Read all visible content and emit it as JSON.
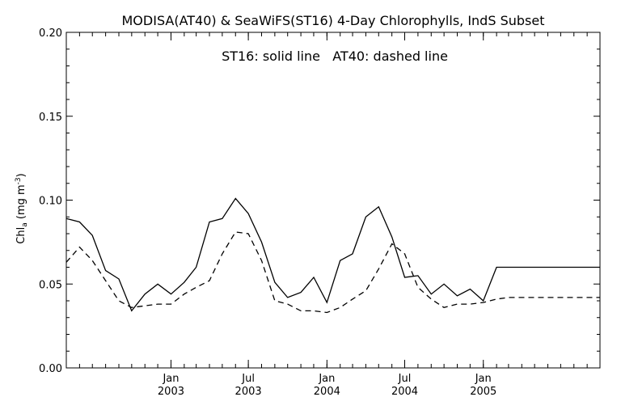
{
  "chart_data": {
    "type": "line",
    "title": "MODISA(AT40) & SeaWiFS(ST16) 4-Day Chlorophylls, IndS Subset",
    "annotation": "ST16: solid line   AT40: dashed line",
    "ylabel": {
      "base": "Chl",
      "sub": "a",
      "units_open": " (mg m",
      "sup": "-3",
      "units_close": ")"
    },
    "ylim": [
      0.0,
      0.2
    ],
    "yticks": [
      {
        "value": 0.0,
        "label": "0.00"
      },
      {
        "value": 0.05,
        "label": "0.05"
      },
      {
        "value": 0.1,
        "label": "0.10"
      },
      {
        "value": 0.15,
        "label": "0.15"
      },
      {
        "value": 0.2,
        "label": "0.20"
      }
    ],
    "xlim": [
      "2002-05-01",
      "2005-10-01"
    ],
    "xticks": [
      {
        "date": "2003-01-01",
        "month": "Jan",
        "year": "2003"
      },
      {
        "date": "2003-07-01",
        "month": "Jul",
        "year": "2003"
      },
      {
        "date": "2004-01-01",
        "month": "Jan",
        "year": "2004"
      },
      {
        "date": "2004-07-01",
        "month": "Jul",
        "year": "2004"
      },
      {
        "date": "2005-01-01",
        "month": "Jan",
        "year": "2005"
      }
    ],
    "x": [
      "2002-05-01",
      "2002-06-01",
      "2002-07-01",
      "2002-08-01",
      "2002-09-01",
      "2002-10-01",
      "2002-11-01",
      "2002-12-01",
      "2003-01-01",
      "2003-02-01",
      "2003-03-01",
      "2003-04-01",
      "2003-05-01",
      "2003-06-01",
      "2003-07-01",
      "2003-08-01",
      "2003-09-01",
      "2003-10-01",
      "2003-11-01",
      "2003-12-01",
      "2004-01-01",
      "2004-02-01",
      "2004-03-01",
      "2004-04-01",
      "2004-05-01",
      "2004-06-01",
      "2004-07-01",
      "2004-08-01",
      "2004-09-01",
      "2004-10-01",
      "2004-11-01",
      "2004-12-01",
      "2005-01-01",
      "2005-02-01",
      "2005-03-01",
      "2005-04-01",
      "2005-05-01",
      "2005-06-01",
      "2005-07-01",
      "2005-08-01",
      "2005-09-01",
      "2005-10-01"
    ],
    "series": [
      {
        "style": "solid",
        "values": [
          0.089,
          0.087,
          0.079,
          0.058,
          0.053,
          0.034,
          0.044,
          0.05,
          0.044,
          0.051,
          0.06,
          0.087,
          0.089,
          0.101,
          0.092,
          0.075,
          0.051,
          0.042,
          0.045,
          0.054,
          0.039,
          0.064,
          0.068,
          0.09,
          0.096,
          0.078,
          0.054,
          0.055,
          0.044,
          0.05,
          0.043,
          0.047,
          0.04,
          0.06,
          0.06,
          0.06,
          0.06,
          0.06,
          0.06,
          0.06,
          0.06,
          0.06
        ]
      },
      {
        "style": "dashed",
        "values": [
          0.063,
          0.072,
          0.064,
          0.052,
          0.04,
          0.036,
          0.037,
          0.038,
          0.038,
          0.044,
          0.048,
          0.052,
          0.068,
          0.081,
          0.08,
          0.064,
          0.04,
          0.038,
          0.034,
          0.034,
          0.033,
          0.036,
          0.041,
          0.046,
          0.059,
          0.074,
          0.068,
          0.048,
          0.041,
          0.036,
          0.038,
          0.038,
          0.039,
          0.041,
          0.042,
          0.042,
          0.042,
          0.042,
          0.042,
          0.042,
          0.042,
          0.042
        ]
      }
    ]
  }
}
